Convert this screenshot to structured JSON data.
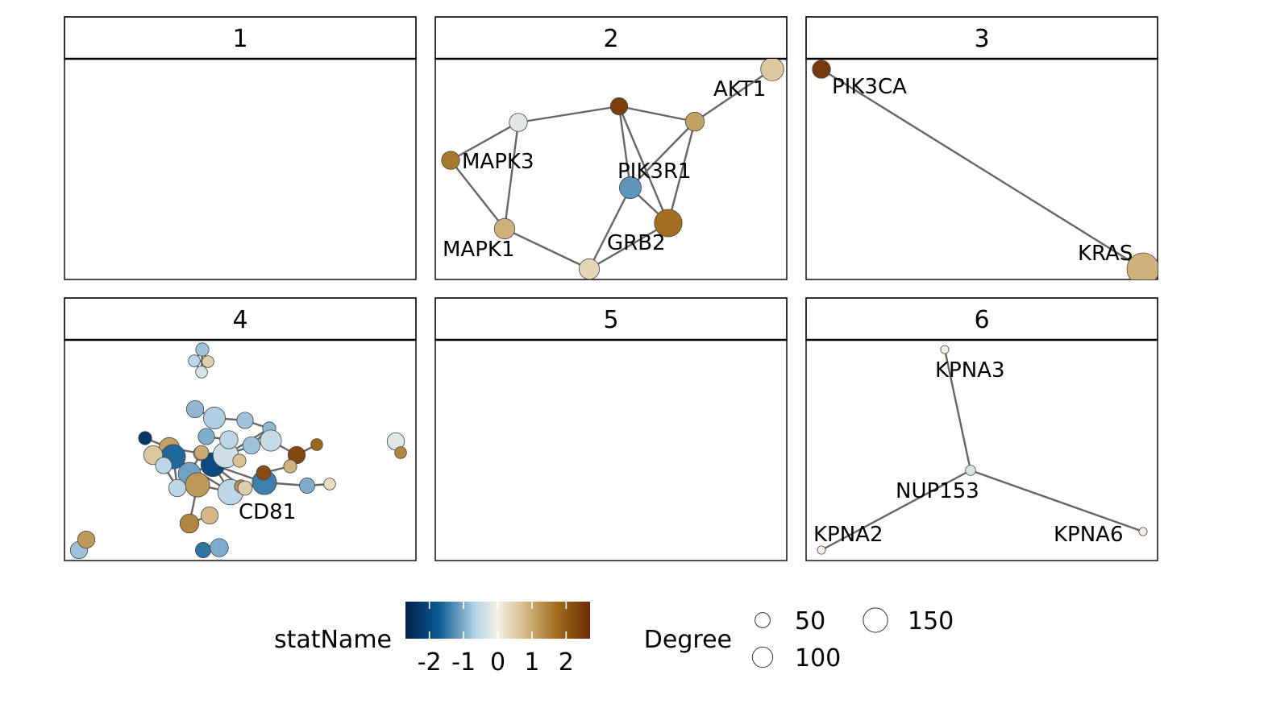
{
  "chart_data": {
    "type": "network-facets",
    "panels": [
      {
        "label": "1",
        "nodes": [],
        "edges": []
      },
      {
        "label": "2",
        "nodes": [
          {
            "id": "AKT1",
            "label": "AKT1",
            "stat": 0.6,
            "degree": 80
          },
          {
            "id": "MAPK3",
            "label": "MAPK3",
            "stat": 1.6,
            "degree": 45
          },
          {
            "id": "PIK3R1",
            "label": "PIK3R1",
            "stat": -1.2,
            "degree": 70
          },
          {
            "id": "MAPK1",
            "label": "MAPK1",
            "stat": 0.9,
            "degree": 60
          },
          {
            "id": "GRB2",
            "label": "GRB2",
            "stat": 1.7,
            "degree": 120
          },
          {
            "id": "n2a",
            "label": "",
            "stat": -0.2,
            "degree": 45
          },
          {
            "id": "n2b",
            "label": "",
            "stat": 2.4,
            "degree": 40
          },
          {
            "id": "n2c",
            "label": "",
            "stat": 1.1,
            "degree": 50
          },
          {
            "id": "n2d",
            "label": "",
            "stat": 0.4,
            "degree": 60
          }
        ],
        "edges": [
          [
            "MAPK3",
            "n2a"
          ],
          [
            "MAPK3",
            "MAPK1"
          ],
          [
            "n2a",
            "MAPK1"
          ],
          [
            "n2a",
            "n2b"
          ],
          [
            "n2b",
            "PIK3R1"
          ],
          [
            "n2b",
            "GRB2"
          ],
          [
            "n2b",
            "n2c"
          ],
          [
            "n2c",
            "AKT1"
          ],
          [
            "n2c",
            "PIK3R1"
          ],
          [
            "n2c",
            "GRB2"
          ],
          [
            "PIK3R1",
            "GRB2"
          ],
          [
            "PIK3R1",
            "n2d"
          ],
          [
            "MAPK1",
            "n2d"
          ],
          [
            "n2d",
            "GRB2"
          ]
        ]
      },
      {
        "label": "3",
        "nodes": [
          {
            "id": "PIK3CA",
            "label": "PIK3CA",
            "stat": 2.5,
            "degree": 45
          },
          {
            "id": "KRAS",
            "label": "KRAS",
            "stat": 0.9,
            "degree": 170
          }
        ],
        "edges": [
          [
            "PIK3CA",
            "KRAS"
          ]
        ]
      },
      {
        "label": "4",
        "nodes": [
          {
            "id": "CD81",
            "label": "CD81",
            "stat": 1.4,
            "degree": 50
          },
          {
            "id": "a1",
            "label": "",
            "stat": -0.8,
            "degree": 20
          },
          {
            "id": "a2",
            "label": "",
            "stat": -0.6,
            "degree": 15
          },
          {
            "id": "a3",
            "label": "",
            "stat": 0.5,
            "degree": 15
          },
          {
            "id": "a4",
            "label": "",
            "stat": -0.3,
            "degree": 15
          },
          {
            "id": "b1",
            "label": "",
            "stat": -0.9,
            "degree": 40
          },
          {
            "id": "b2",
            "label": "",
            "stat": -0.7,
            "degree": 70
          },
          {
            "id": "b3",
            "label": "",
            "stat": -0.8,
            "degree": 35
          },
          {
            "id": "b4",
            "label": "",
            "stat": -0.9,
            "degree": 20
          },
          {
            "id": "b5",
            "label": "",
            "stat": -0.8,
            "degree": 40
          },
          {
            "id": "b6",
            "label": "",
            "stat": -0.5,
            "degree": 65
          },
          {
            "id": "b7",
            "label": "",
            "stat": 2.3,
            "degree": 40
          },
          {
            "id": "b8",
            "label": "",
            "stat": 1.8,
            "degree": 15
          },
          {
            "id": "b9",
            "label": "",
            "stat": -2.3,
            "degree": 20
          },
          {
            "id": "b10",
            "label": "",
            "stat": 1.1,
            "degree": 60
          },
          {
            "id": "b11",
            "label": "",
            "stat": 0.8,
            "degree": 25
          },
          {
            "id": "b12",
            "label": "",
            "stat": -0.8,
            "degree": 30
          },
          {
            "id": "b13",
            "label": "",
            "stat": -1.3,
            "degree": 20
          },
          {
            "id": "b14",
            "label": "",
            "stat": -1.6,
            "degree": 90
          },
          {
            "id": "b15",
            "label": "",
            "stat": -1.1,
            "degree": 75
          },
          {
            "id": "b16",
            "label": "",
            "stat": -2.0,
            "degree": 85
          },
          {
            "id": "b17",
            "label": "",
            "stat": -0.4,
            "degree": 100
          },
          {
            "id": "b18",
            "label": "",
            "stat": 0.7,
            "degree": 20
          },
          {
            "id": "b19",
            "label": "",
            "stat": 1.2,
            "degree": 90
          },
          {
            "id": "b20",
            "label": "",
            "stat": -0.6,
            "degree": 100
          },
          {
            "id": "b21",
            "label": "",
            "stat": 0.8,
            "degree": 40
          },
          {
            "id": "b22",
            "label": "",
            "stat": -0.6,
            "degree": 45
          },
          {
            "id": "b23",
            "label": "",
            "stat": -1.0,
            "degree": 35
          },
          {
            "id": "b24",
            "label": "",
            "stat": -1.4,
            "degree": 90
          },
          {
            "id": "b25",
            "label": "",
            "stat": 2.2,
            "degree": 25
          },
          {
            "id": "b26",
            "label": "",
            "stat": 0.9,
            "degree": 20
          },
          {
            "id": "b27",
            "label": "",
            "stat": -1.0,
            "degree": 30
          },
          {
            "id": "b28",
            "label": "",
            "stat": 0.3,
            "degree": 15
          },
          {
            "id": "b29",
            "label": "",
            "stat": 0.6,
            "degree": 50
          },
          {
            "id": "b30",
            "label": "",
            "stat": -0.6,
            "degree": 35
          },
          {
            "id": "b31",
            "label": "",
            "stat": -0.6,
            "degree": 40
          },
          {
            "id": "b32",
            "label": "",
            "stat": 1.0,
            "degree": 25
          },
          {
            "id": "b33",
            "label": "",
            "stat": 1.3,
            "degree": 20
          },
          {
            "id": "b34",
            "label": "",
            "stat": 0.5,
            "degree": 25
          },
          {
            "id": "c1",
            "label": "",
            "stat": -0.2,
            "degree": 40
          },
          {
            "id": "c2",
            "label": "",
            "stat": 1.4,
            "degree": 15
          },
          {
            "id": "d1",
            "label": "",
            "stat": -0.8,
            "degree": 40
          },
          {
            "id": "d2",
            "label": "",
            "stat": 1.2,
            "degree": 40
          },
          {
            "id": "e1",
            "label": "",
            "stat": -1.5,
            "degree": 30
          },
          {
            "id": "e2",
            "label": "",
            "stat": -1.0,
            "degree": 45
          }
        ],
        "edges": [
          [
            "a1",
            "a2"
          ],
          [
            "a1",
            "a3"
          ],
          [
            "a2",
            "a3"
          ],
          [
            "a2",
            "a4"
          ],
          [
            "a3",
            "a4"
          ],
          [
            "a1",
            "a4"
          ],
          [
            "b1",
            "b2"
          ],
          [
            "b2",
            "b3"
          ],
          [
            "b3",
            "b4"
          ],
          [
            "b4",
            "b5"
          ],
          [
            "b5",
            "b6"
          ],
          [
            "b6",
            "b7"
          ],
          [
            "b7",
            "b8"
          ],
          [
            "b9",
            "b10"
          ],
          [
            "b10",
            "b11"
          ],
          [
            "b11",
            "b12"
          ],
          [
            "b12",
            "b6"
          ],
          [
            "b13",
            "b14"
          ],
          [
            "b14",
            "b15"
          ],
          [
            "b15",
            "b16"
          ],
          [
            "b16",
            "b17"
          ],
          [
            "b17",
            "b18"
          ],
          [
            "b15",
            "b19"
          ],
          [
            "b14",
            "b20"
          ],
          [
            "b19",
            "b20"
          ],
          [
            "b19",
            "CD81"
          ],
          [
            "CD81",
            "b21"
          ],
          [
            "b17",
            "b22"
          ],
          [
            "b22",
            "b23"
          ],
          [
            "b20",
            "b24"
          ],
          [
            "b24",
            "b25"
          ],
          [
            "b25",
            "b26"
          ],
          [
            "b26",
            "b7"
          ],
          [
            "b24",
            "b27"
          ],
          [
            "b27",
            "b28"
          ],
          [
            "b29",
            "b30"
          ],
          [
            "b30",
            "b31"
          ],
          [
            "b31",
            "b14"
          ],
          [
            "b32",
            "b15"
          ],
          [
            "b16",
            "b33"
          ],
          [
            "b4",
            "b17"
          ],
          [
            "b1",
            "b2"
          ],
          [
            "b16",
            "b24"
          ],
          [
            "b20",
            "b16"
          ],
          [
            "b34",
            "b20"
          ],
          [
            "c1",
            "c2"
          ],
          [
            "d1",
            "d2"
          ],
          [
            "e1",
            "e2"
          ]
        ]
      },
      {
        "label": "5",
        "nodes": [],
        "edges": []
      },
      {
        "label": "6",
        "nodes": [
          {
            "id": "KPNA3",
            "label": "KPNA3",
            "stat": 0.0,
            "degree": 5
          },
          {
            "id": "NUP153",
            "label": "NUP153",
            "stat": -0.3,
            "degree": 10
          },
          {
            "id": "KPNA2",
            "label": "KPNA2",
            "stat": 0.0,
            "degree": 5
          },
          {
            "id": "KPNA6",
            "label": "KPNA6",
            "stat": 0.0,
            "degree": 5
          }
        ],
        "edges": [
          [
            "KPNA3",
            "NUP153"
          ],
          [
            "NUP153",
            "KPNA2"
          ],
          [
            "NUP153",
            "KPNA6"
          ]
        ]
      }
    ],
    "legend": {
      "color_title": "statName",
      "color_ticks": [
        "-2",
        "-1",
        "0",
        "1",
        "2"
      ],
      "color_tick_values": [
        -2,
        -1,
        0,
        1,
        2
      ],
      "color_range": [
        -2.7,
        2.7
      ],
      "size_title": "Degree",
      "size_items": [
        {
          "label": "50",
          "value": 50
        },
        {
          "label": "100",
          "value": 100
        },
        {
          "label": "150",
          "value": 150
        }
      ]
    },
    "palette": [
      "#00204d",
      "#0b5a91",
      "#b7d4e8",
      "#f4efe4",
      "#d6bd8c",
      "#a06c1c",
      "#6e2b0a"
    ],
    "edge_color": "#666666",
    "node_stroke": "#444444"
  }
}
